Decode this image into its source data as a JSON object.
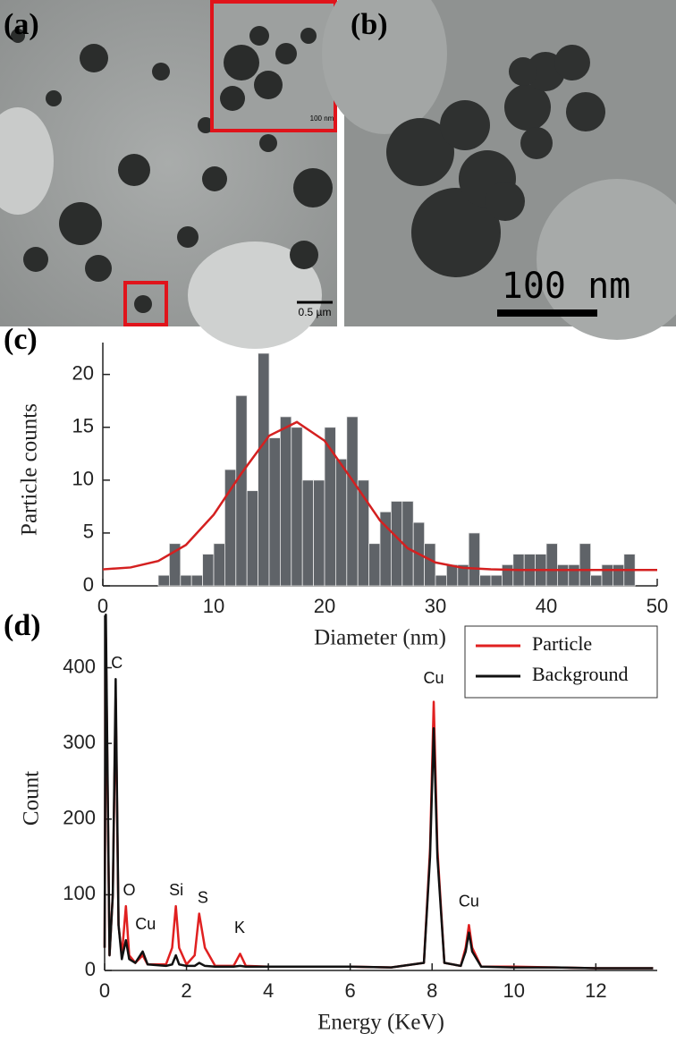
{
  "panels": {
    "a": {
      "label": "(a)",
      "scale_bar": "0.5 µm",
      "inset_scale_bar": "100 nm"
    },
    "b": {
      "label": "(b)",
      "scale_bar": "100 nm"
    }
  },
  "chart_data": [
    {
      "type": "histogram",
      "panel_label": "(c)",
      "xlabel": "Diameter (nm)",
      "ylabel": "Particle counts",
      "bins": [
        5,
        6,
        7,
        8,
        9,
        10,
        11,
        12,
        13,
        14,
        15,
        16,
        17,
        18,
        19,
        20,
        21,
        22,
        23,
        24,
        25,
        26,
        27,
        28,
        29,
        30,
        31,
        32,
        33,
        34,
        35,
        36,
        37,
        38,
        39,
        40,
        41,
        42,
        43,
        44,
        45,
        46,
        47,
        48
      ],
      "values": [
        1,
        4,
        1,
        1,
        3,
        4,
        11,
        18,
        9,
        22,
        14,
        16,
        15,
        10,
        10,
        15,
        12,
        16,
        10,
        4,
        7,
        8,
        8,
        6,
        4,
        1,
        2,
        2,
        5,
        1,
        1,
        2,
        3,
        3,
        3,
        4,
        2,
        2,
        4,
        1,
        2,
        2,
        3
      ],
      "color": "#5f6368",
      "fit": {
        "color": "#d42020",
        "x": [
          0,
          2.5,
          5,
          7.5,
          10,
          12.5,
          15,
          17.5,
          20,
          22.5,
          25,
          27.5,
          30,
          32.5,
          35,
          37.5,
          40,
          42.5,
          45,
          47.5,
          50
        ],
        "values": [
          1.56,
          1.74,
          2.35,
          3.87,
          6.73,
          10.64,
          14.2,
          15.5,
          13.73,
          10.0,
          6.18,
          3.55,
          2.21,
          1.7,
          1.56,
          1.5,
          1.5,
          1.5,
          1.5,
          1.5,
          1.5
        ]
      },
      "xlim": [
        0,
        50
      ],
      "xticks": [
        0,
        10,
        20,
        30,
        40,
        50
      ],
      "ylim": [
        0,
        22
      ],
      "yticks": [
        0,
        5,
        10,
        15,
        20
      ],
      "grid": false
    },
    {
      "type": "line",
      "panel_label": "(d)",
      "xlabel": "Energy (KeV)",
      "ylabel": "Count",
      "x": [
        0,
        0.03,
        0.12,
        0.2,
        0.27,
        0.34,
        0.42,
        0.52,
        0.6,
        0.75,
        0.93,
        1.05,
        1.5,
        1.65,
        1.74,
        1.82,
        2.0,
        2.2,
        2.31,
        2.45,
        2.7,
        3.15,
        3.31,
        3.45,
        4,
        5,
        6,
        7,
        7.8,
        7.95,
        8.04,
        8.13,
        8.3,
        8.7,
        8.82,
        8.9,
        8.98,
        9.2,
        10,
        11,
        12,
        13.4
      ],
      "series": [
        {
          "name": "Particle",
          "color": "#e02020",
          "values": [
            30,
            440,
            20,
            100,
            360,
            60,
            20,
            85,
            20,
            10,
            20,
            8,
            8,
            30,
            85,
            30,
            8,
            20,
            75,
            30,
            6,
            6,
            22,
            6,
            5,
            5,
            5,
            4,
            10,
            160,
            355,
            160,
            10,
            6,
            30,
            60,
            30,
            5,
            5,
            4,
            3,
            3
          ]
        },
        {
          "name": "Background",
          "color": "#111111",
          "values": [
            30,
            470,
            20,
            100,
            385,
            60,
            15,
            40,
            15,
            10,
            25,
            8,
            6,
            8,
            20,
            8,
            6,
            6,
            10,
            6,
            5,
            5,
            6,
            5,
            5,
            5,
            5,
            4,
            10,
            150,
            320,
            150,
            10,
            6,
            25,
            50,
            25,
            5,
            4,
            4,
            3,
            3
          ]
        }
      ],
      "annotations": [
        {
          "text": "C",
          "x": 0.3,
          "y": 405
        },
        {
          "text": "O",
          "x": 0.6,
          "y": 105
        },
        {
          "text": "Cu",
          "x": 1.0,
          "y": 60
        },
        {
          "text": "Si",
          "x": 1.75,
          "y": 105
        },
        {
          "text": "S",
          "x": 2.4,
          "y": 95
        },
        {
          "text": "K",
          "x": 3.3,
          "y": 55
        },
        {
          "text": "Cu",
          "x": 8.04,
          "y": 385
        },
        {
          "text": "Cu",
          "x": 8.9,
          "y": 90
        }
      ],
      "legend": "upper right",
      "xlim": [
        0,
        13.5
      ],
      "xticks": [
        0,
        2,
        4,
        6,
        8,
        10,
        12
      ],
      "ylim": [
        0,
        455
      ],
      "yticks": [
        0,
        100,
        200,
        300,
        400
      ],
      "grid": false
    }
  ]
}
